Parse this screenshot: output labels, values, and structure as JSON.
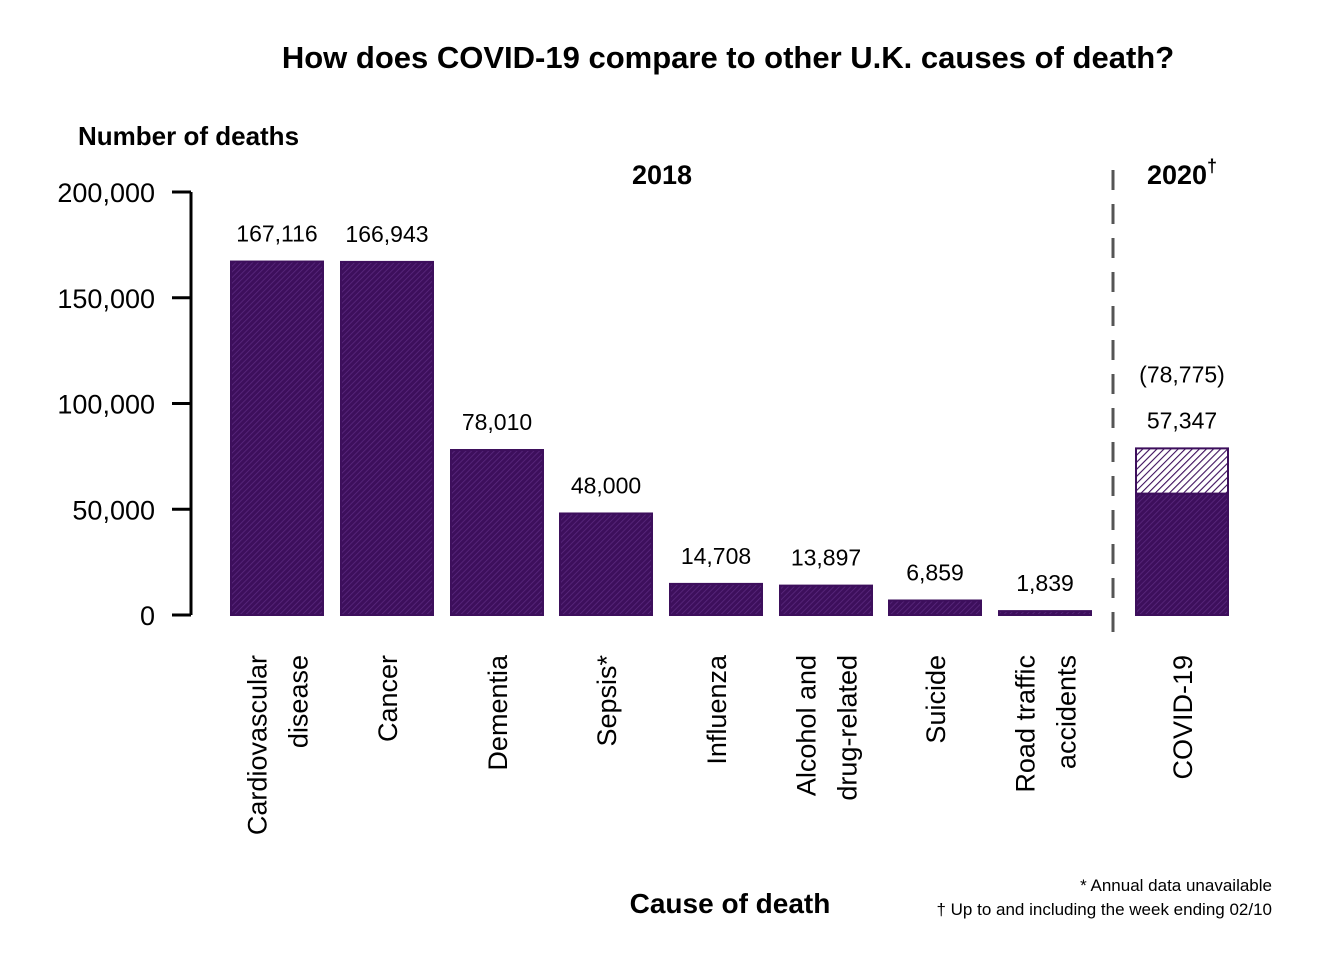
{
  "chart_data": {
    "type": "bar",
    "title": "How does COVID-19 compare to other U.K. causes of death?",
    "ylabel": "Number of deaths",
    "xlabel": "Cause of death",
    "ylim": [
      0,
      200000
    ],
    "yticks": [
      0,
      50000,
      100000,
      150000,
      200000
    ],
    "ytick_labels": [
      "0",
      "50,000",
      "100,000",
      "150,000",
      "200,000"
    ],
    "grid": false,
    "colors": {
      "bar": "#3d0f5c",
      "hatch": "#5c2a80",
      "divider": "#555555"
    },
    "groups": [
      {
        "label": "2018",
        "superscript": ""
      },
      {
        "label": "2020",
        "superscript": "†"
      }
    ],
    "categories": [
      {
        "lines": [
          "Cardiovascular",
          "disease"
        ],
        "value": 167116,
        "value_label": "167,116",
        "group": 0
      },
      {
        "lines": [
          "Cancer"
        ],
        "value": 166943,
        "value_label": "166,943",
        "group": 0
      },
      {
        "lines": [
          "Dementia"
        ],
        "value": 78010,
        "value_label": "78,010",
        "group": 0
      },
      {
        "lines": [
          "Sepsis*"
        ],
        "value": 48000,
        "value_label": "48,000",
        "group": 0
      },
      {
        "lines": [
          "Influenza"
        ],
        "value": 14708,
        "value_label": "14,708",
        "group": 0
      },
      {
        "lines": [
          "Alcohol and",
          "drug-related"
        ],
        "value": 13897,
        "value_label": "13,897",
        "group": 0
      },
      {
        "lines": [
          "Suicide"
        ],
        "value": 6859,
        "value_label": "6,859",
        "group": 0
      },
      {
        "lines": [
          "Road traffic",
          "accidents"
        ],
        "value": 1839,
        "value_label": "1,839",
        "group": 0
      },
      {
        "lines": [
          "COVID-19"
        ],
        "value": 57347,
        "value_label": "57,347",
        "extra_total": 78775,
        "extra_label": "(78,775)",
        "group": 1
      }
    ],
    "footnotes": [
      "* Annual data unavailable",
      "† Up to and including the week ending 02/10"
    ]
  }
}
